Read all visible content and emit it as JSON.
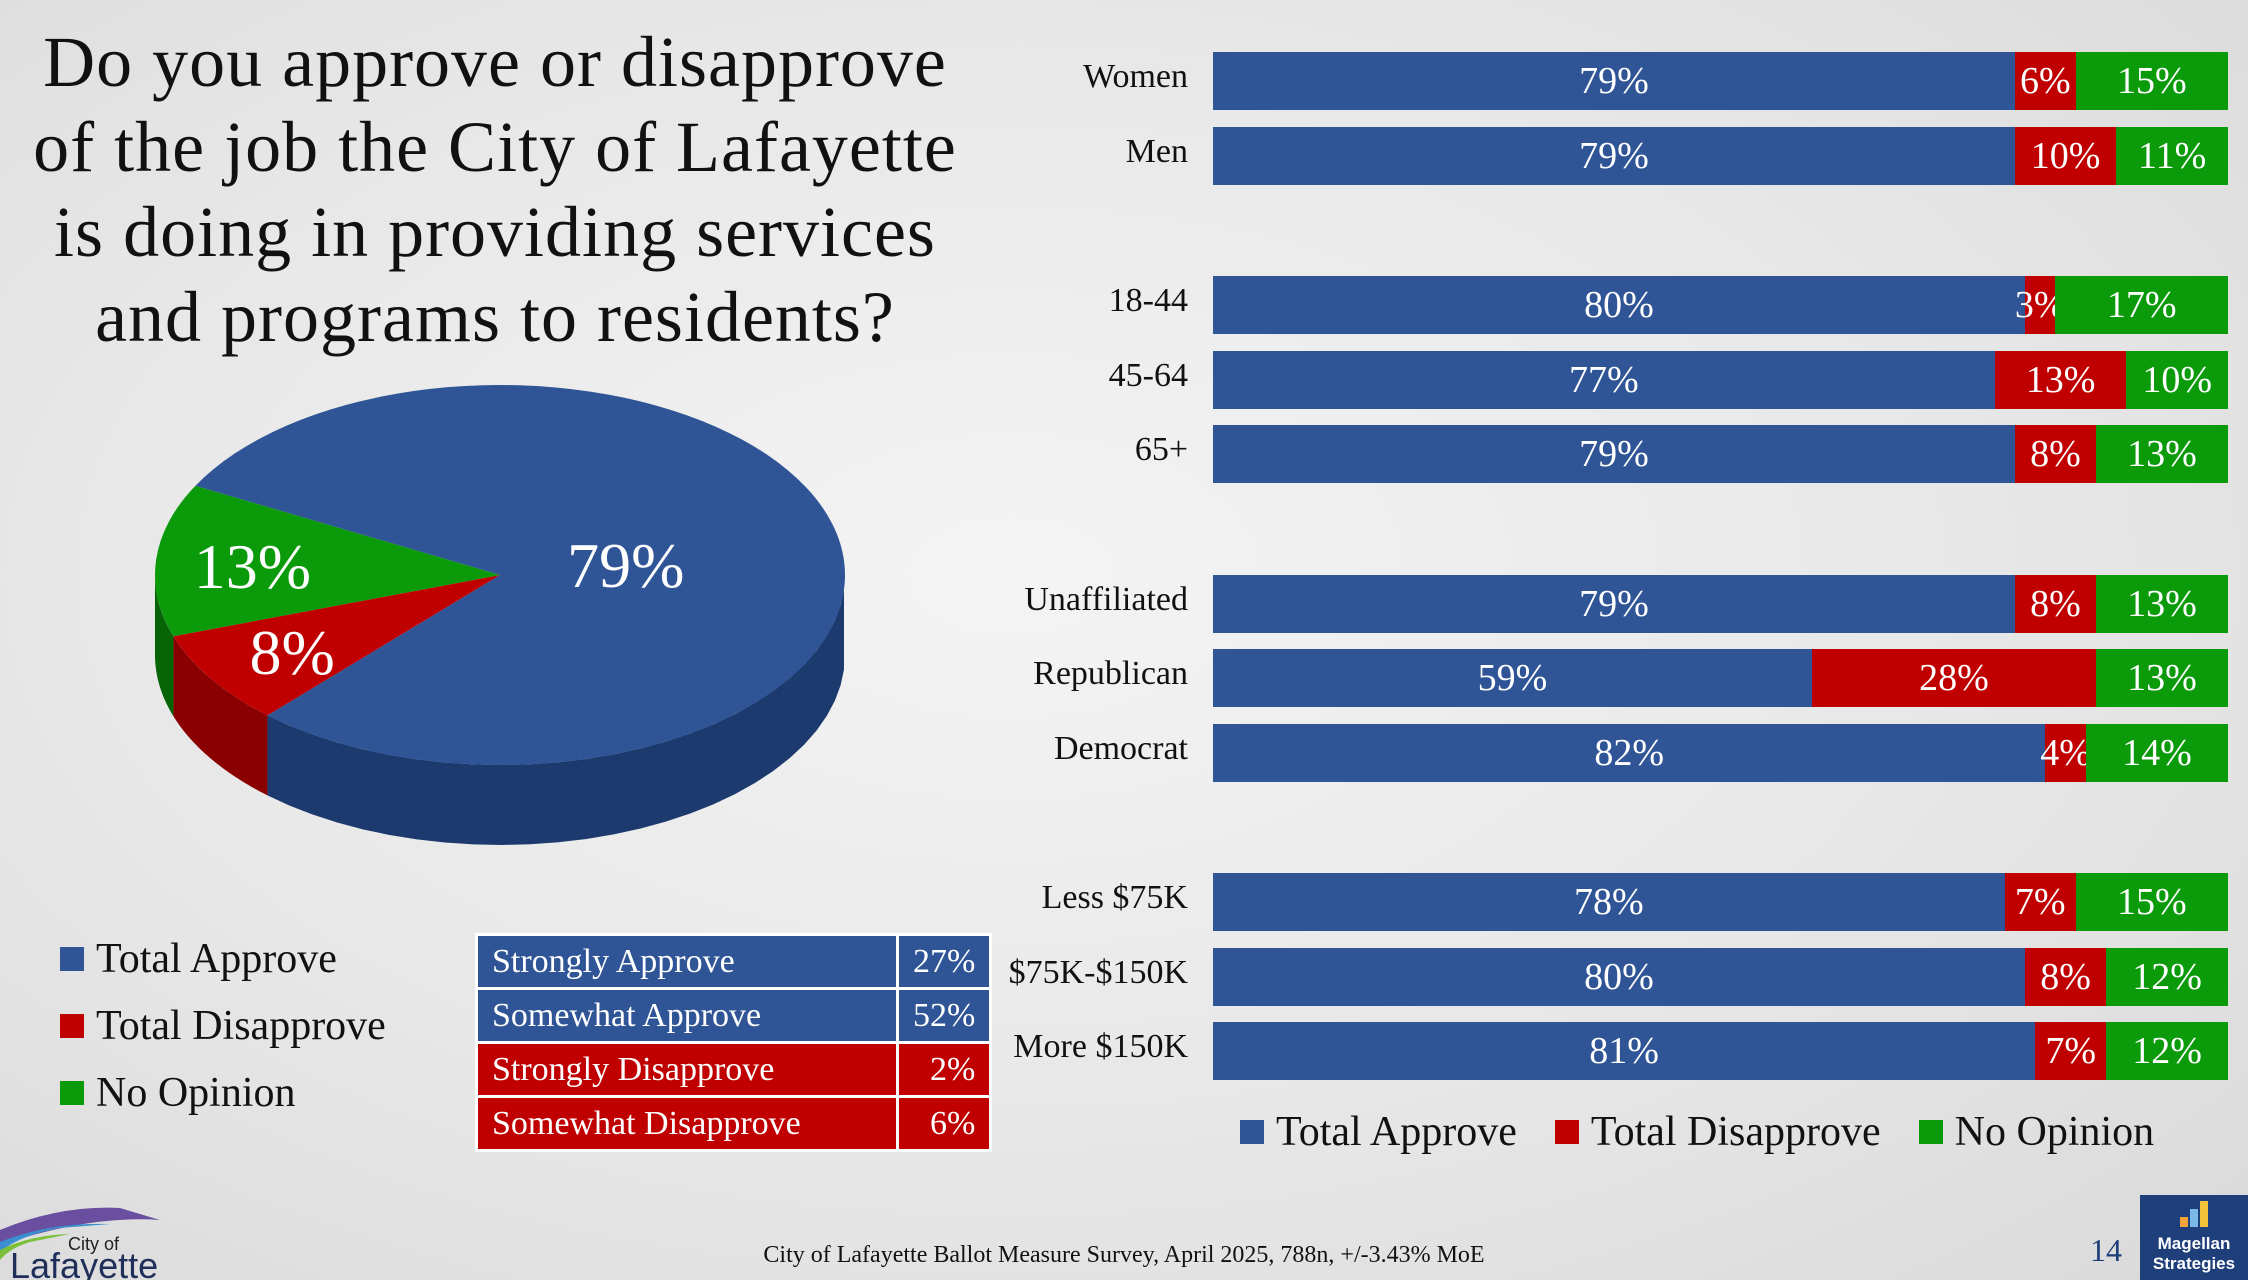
{
  "title_lines": [
    "Do you approve or disapprove",
    "of the job the City of Lafayette",
    "is doing in providing services",
    "and programs to residents?"
  ],
  "colors": {
    "approve": "#2f5597",
    "disapprove": "#c00000",
    "no_opinion": "#0a9a0a"
  },
  "chart_data": [
    {
      "type": "pie",
      "slices": [
        {
          "name": "Total Approve",
          "value": 79,
          "label": "79%"
        },
        {
          "name": "Total Disapprove",
          "value": 8,
          "label": "8%"
        },
        {
          "name": "No Opinion",
          "value": 13,
          "label": "13%"
        }
      ],
      "legend": [
        "Total Approve",
        "Total Disapprove",
        "No Opinion"
      ],
      "legend_position": "bottom-left"
    },
    {
      "type": "bar",
      "orientation": "horizontal-stacked",
      "series_names": [
        "Total Approve",
        "Total Disapprove",
        "No Opinion"
      ],
      "rows": [
        {
          "label": "Women",
          "values": [
            79,
            6,
            15
          ],
          "group": 0
        },
        {
          "label": "Men",
          "values": [
            79,
            10,
            11
          ],
          "group": 0
        },
        {
          "label": "18-44",
          "values": [
            80,
            3,
            17
          ],
          "group": 1
        },
        {
          "label": "45-64",
          "values": [
            77,
            13,
            10
          ],
          "group": 1
        },
        {
          "label": "65+",
          "values": [
            79,
            8,
            13
          ],
          "group": 1
        },
        {
          "label": "Unaffiliated",
          "values": [
            79,
            8,
            13
          ],
          "group": 2
        },
        {
          "label": "Republican",
          "values": [
            59,
            28,
            13
          ],
          "group": 2
        },
        {
          "label": "Democrat",
          "values": [
            82,
            4,
            14
          ],
          "group": 2
        },
        {
          "label": "Less $75K",
          "values": [
            78,
            7,
            15
          ],
          "group": 3
        },
        {
          "label": "$75K-$150K",
          "values": [
            80,
            8,
            12
          ],
          "group": 3
        },
        {
          "label": "More $150K",
          "values": [
            81,
            7,
            12
          ],
          "group": 3
        }
      ],
      "legend_position": "bottom"
    }
  ],
  "breakdown_table": [
    {
      "label": "Strongly Approve",
      "value": "27%",
      "type": "approve"
    },
    {
      "label": "Somewhat Approve",
      "value": "52%",
      "type": "approve"
    },
    {
      "label": "Strongly Disapprove",
      "value": "2%",
      "type": "disapprove"
    },
    {
      "label": "Somewhat Disapprove",
      "value": "6%",
      "type": "disapprove"
    }
  ],
  "footer": "City of Lafayette Ballot Measure Survey, April 2025, 788n, +/-3.43% MoE",
  "page_number": "14",
  "logo_city": {
    "line1": "City of",
    "line2": "Lafayette"
  },
  "logo_magellan": {
    "line1": "Magellan",
    "line2": "Strategies"
  }
}
